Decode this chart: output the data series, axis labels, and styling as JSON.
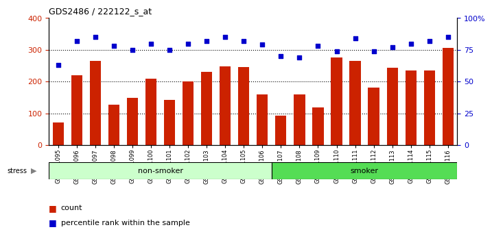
{
  "title": "GDS2486 / 222122_s_at",
  "categories": [
    "GSM101095",
    "GSM101096",
    "GSM101097",
    "GSM101098",
    "GSM101099",
    "GSM101100",
    "GSM101101",
    "GSM101102",
    "GSM101103",
    "GSM101104",
    "GSM101105",
    "GSM101106",
    "GSM101107",
    "GSM101108",
    "GSM101109",
    "GSM101110",
    "GSM101111",
    "GSM101112",
    "GSM101113",
    "GSM101114",
    "GSM101115",
    "GSM101116"
  ],
  "bar_values": [
    72,
    220,
    265,
    128,
    148,
    210,
    142,
    200,
    230,
    248,
    245,
    160,
    93,
    160,
    118,
    275,
    265,
    182,
    243,
    235,
    235,
    307
  ],
  "percentile_values": [
    63,
    82,
    85,
    78,
    75,
    80,
    75,
    80,
    82,
    85,
    82,
    79,
    70,
    69,
    78,
    74,
    84,
    74,
    77,
    80,
    82,
    85
  ],
  "bar_color": "#cc2200",
  "point_color": "#0000cc",
  "non_smoker_color": "#ccffcc",
  "smoker_color": "#55dd55",
  "non_smoker_count": 12,
  "smoker_count": 10,
  "left_ylim": [
    0,
    400
  ],
  "right_ylim": [
    0,
    100
  ],
  "left_yticks": [
    0,
    100,
    200,
    300,
    400
  ],
  "right_yticks": [
    0,
    25,
    50,
    75,
    100
  ],
  "right_yticklabels": [
    "0",
    "25",
    "50",
    "75",
    "100%"
  ],
  "grid_values": [
    100,
    200,
    300
  ],
  "plot_bg_color": "#ffffff"
}
